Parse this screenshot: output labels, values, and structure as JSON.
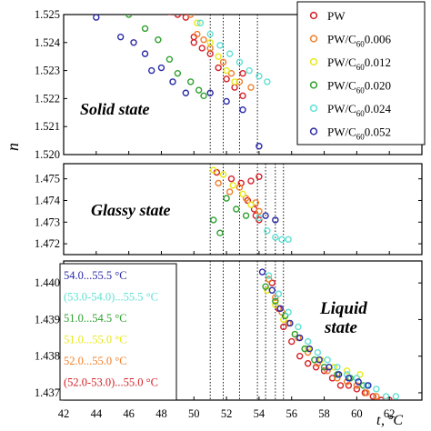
{
  "chart_data": {
    "type": "scatter",
    "x_axis": {
      "label": "t",
      "unit": "°C",
      "range": [
        42,
        64
      ],
      "ticks": [
        "42",
        "44",
        "46",
        "48",
        "50",
        "52",
        "54",
        "56",
        "58",
        "60",
        "62"
      ]
    },
    "y_axis_label": "n",
    "panels": [
      {
        "state": "Solid state",
        "ylim": [
          1.52,
          1.525
        ],
        "ticks": [
          "1.520",
          "1.521",
          "1.522",
          "1.523",
          "1.524",
          "1.525"
        ],
        "dotted_lines": [
          51.0,
          51.8,
          52.8,
          53.9
        ]
      },
      {
        "state": "Glassy state",
        "ylim": [
          1.4715,
          1.4757
        ],
        "ticks": [
          "1.472",
          "1.473",
          "1.474",
          "1.475"
        ],
        "dotted_lines": [
          51.0,
          51.8,
          52.8,
          53.9,
          54.4,
          55.0,
          55.5
        ]
      },
      {
        "state": "Liquid state",
        "state_lines": [
          "Liquid",
          "state"
        ],
        "ylim": [
          1.4368,
          1.4406
        ],
        "ticks": [
          "1.437",
          "1.438",
          "1.439",
          "1.440"
        ],
        "dotted_lines": [
          51.0,
          51.8,
          52.8,
          53.9,
          54.4,
          55.0,
          55.5
        ]
      }
    ],
    "legend": [
      {
        "name": "PW",
        "color": "#d42027"
      },
      {
        "name": "PW/C60 0.006",
        "label_main": "PW/C",
        "label_sub": "60",
        "label_tail": "0.006",
        "color": "#f07f2a"
      },
      {
        "name": "PW/C60 0.012",
        "label_main": "PW/C",
        "label_sub": "60",
        "label_tail": "0.012",
        "color": "#e8e81a"
      },
      {
        "name": "PW/C60 0.020",
        "label_main": "PW/C",
        "label_sub": "60",
        "label_tail": "0.020",
        "color": "#2ea02e"
      },
      {
        "name": "PW/C60 0.024",
        "label_main": "PW/C",
        "label_sub": "60",
        "label_tail": "0.024",
        "color": "#5fe0d4"
      },
      {
        "name": "PW/C60 0.052",
        "label_main": "PW/C",
        "label_sub": "60",
        "label_tail": "0.052",
        "color": "#2a2aa8"
      }
    ],
    "range_labels": [
      {
        "text": "54.0...55.5 °C",
        "color": "#2a2aa8"
      },
      {
        "text": "(53.0-54.0)...55.5 °C",
        "color": "#5fe0d4"
      },
      {
        "text": "51.0...54.5 °C",
        "color": "#2ea02e"
      },
      {
        "text": "51.0...55.0 °C",
        "color": "#e8e81a"
      },
      {
        "text": "52.0...55.0 °C",
        "color": "#f07f2a"
      },
      {
        "text": "(52.0-53.0)...55.0 °C",
        "color": "#d42027"
      }
    ],
    "series": [
      {
        "name": "PW",
        "color": "#d42027",
        "solid": [
          [
            48,
            1.5252
          ],
          [
            48.5,
            1.5251
          ],
          [
            49,
            1.525
          ],
          [
            49.5,
            1.5249
          ],
          [
            50,
            1.5242
          ],
          [
            50,
            1.524
          ],
          [
            50.5,
            1.5238
          ],
          [
            51,
            1.5236
          ],
          [
            51.5,
            1.5231
          ],
          [
            52,
            1.5227
          ],
          [
            52.5,
            1.5224
          ],
          [
            53,
            1.5229
          ],
          [
            53,
            1.5221
          ]
        ],
        "glassy": [
          [
            51.4,
            1.4753
          ],
          [
            52.3,
            1.475
          ],
          [
            52.9,
            1.4748
          ],
          [
            53.5,
            1.4749
          ],
          [
            54,
            1.4751
          ],
          [
            53.3,
            1.474
          ],
          [
            53.7,
            1.4736
          ],
          [
            53.8,
            1.4733
          ],
          [
            54,
            1.4731
          ]
        ],
        "liquid": [
          [
            54.8,
            1.44
          ],
          [
            55.2,
            1.4393
          ],
          [
            55.5,
            1.4388
          ],
          [
            56,
            1.4384
          ],
          [
            56.5,
            1.438
          ],
          [
            57,
            1.4378
          ],
          [
            57.5,
            1.4377
          ],
          [
            58,
            1.4376
          ],
          [
            58.5,
            1.4374
          ],
          [
            59,
            1.4372
          ],
          [
            59.5,
            1.4372
          ],
          [
            60,
            1.4371
          ],
          [
            60.5,
            1.437
          ],
          [
            61,
            1.4369
          ],
          [
            61.5,
            1.4368
          ],
          [
            62,
            1.4368
          ]
        ]
      },
      {
        "name": "PW/C60 0.006",
        "color": "#f07f2a",
        "solid": [
          [
            49.2,
            1.5252
          ],
          [
            49.8,
            1.525
          ],
          [
            50.2,
            1.5243
          ],
          [
            50.6,
            1.5241
          ],
          [
            51,
            1.5238
          ],
          [
            51.8,
            1.5233
          ],
          [
            52.3,
            1.5229
          ],
          [
            52.8,
            1.5226
          ],
          [
            53.5,
            1.5224
          ]
        ],
        "glassy": [
          [
            51.5,
            1.4748
          ],
          [
            52.2,
            1.4744
          ],
          [
            52.8,
            1.4746
          ],
          [
            53.2,
            1.4741
          ],
          [
            53.8,
            1.4739
          ],
          [
            54,
            1.4735
          ]
        ],
        "liquid": [
          [
            54.6,
            1.4401
          ],
          [
            55,
            1.4396
          ],
          [
            55.4,
            1.4392
          ],
          [
            55.8,
            1.4389
          ],
          [
            56.4,
            1.4385
          ],
          [
            57,
            1.4381
          ],
          [
            57.6,
            1.4378
          ],
          [
            58.2,
            1.4376
          ],
          [
            58.8,
            1.4374
          ],
          [
            59.4,
            1.4373
          ],
          [
            60,
            1.4372
          ],
          [
            60.6,
            1.437
          ],
          [
            61.2,
            1.4369
          ]
        ]
      },
      {
        "name": "PW/C60 0.012",
        "color": "#e8e81a",
        "solid": [
          [
            49.5,
            1.5252
          ],
          [
            50.2,
            1.5247
          ],
          [
            51,
            1.524
          ],
          [
            51.5,
            1.5235
          ],
          [
            52,
            1.523
          ],
          [
            52.5,
            1.5226
          ]
        ],
        "glassy": [
          [
            51.2,
            1.4754
          ],
          [
            51.8,
            1.4752
          ],
          [
            52.4,
            1.4747
          ],
          [
            53,
            1.4743
          ],
          [
            53.5,
            1.4738
          ]
        ],
        "liquid": [
          [
            54.5,
            1.4398
          ],
          [
            55,
            1.4394
          ],
          [
            55.5,
            1.439
          ],
          [
            56.2,
            1.4386
          ],
          [
            57,
            1.4382
          ],
          [
            57.8,
            1.4379
          ],
          [
            58.6,
            1.4377
          ],
          [
            59.4,
            1.4376
          ],
          [
            60.2,
            1.4375
          ]
        ]
      },
      {
        "name": "PW/C60 0.020",
        "color": "#2ea02e",
        "solid": [
          [
            45.5,
            1.5252
          ],
          [
            46,
            1.525
          ],
          [
            47,
            1.5245
          ],
          [
            47.8,
            1.5241
          ],
          [
            48.5,
            1.5234
          ],
          [
            49,
            1.5229
          ],
          [
            49.8,
            1.5226
          ],
          [
            50.3,
            1.5223
          ],
          [
            50.6,
            1.5221
          ]
        ],
        "glassy": [
          [
            51.2,
            1.4731
          ],
          [
            51.6,
            1.4725
          ],
          [
            52,
            1.4741
          ],
          [
            52.6,
            1.4736
          ],
          [
            53.2,
            1.4733
          ]
        ],
        "liquid": [
          [
            54.4,
            1.4399
          ],
          [
            55,
            1.4395
          ],
          [
            55.6,
            1.4391
          ],
          [
            56.2,
            1.4386
          ],
          [
            56.8,
            1.4382
          ],
          [
            57.4,
            1.4379
          ],
          [
            58,
            1.4377
          ],
          [
            58.8,
            1.4375
          ],
          [
            59.6,
            1.4374
          ],
          [
            60.4,
            1.4372
          ]
        ]
      },
      {
        "name": "PW/C60 0.024",
        "color": "#5fe0d4",
        "solid": [
          [
            50.4,
            1.5247
          ],
          [
            51,
            1.5243
          ],
          [
            51.6,
            1.5239
          ],
          [
            52.2,
            1.5236
          ],
          [
            52.8,
            1.5233
          ],
          [
            53.4,
            1.523
          ],
          [
            54,
            1.5228
          ],
          [
            54.5,
            1.5226
          ]
        ],
        "glassy": [
          [
            54,
            1.4732
          ],
          [
            54.5,
            1.4726
          ],
          [
            55,
            1.4723
          ],
          [
            55.4,
            1.4722
          ],
          [
            55.8,
            1.4722
          ]
        ],
        "liquid": [
          [
            54.6,
            1.4402
          ],
          [
            55.2,
            1.4397
          ],
          [
            55.8,
            1.4392
          ],
          [
            56.4,
            1.4388
          ],
          [
            57,
            1.4384
          ],
          [
            57.6,
            1.4381
          ],
          [
            58.2,
            1.4379
          ],
          [
            58.8,
            1.4377
          ],
          [
            59.4,
            1.4375
          ],
          [
            60,
            1.4374
          ],
          [
            60.6,
            1.4372
          ],
          [
            61.2,
            1.4371
          ],
          [
            61.8,
            1.4369
          ],
          [
            62.4,
            1.4369
          ]
        ]
      },
      {
        "name": "PW/C60 0.052",
        "color": "#2a2aa8",
        "solid": [
          [
            44,
            1.5249
          ],
          [
            45.5,
            1.5242
          ],
          [
            46.3,
            1.524
          ],
          [
            47,
            1.5236
          ],
          [
            47.4,
            1.523
          ],
          [
            48,
            1.5231
          ],
          [
            48.7,
            1.5226
          ],
          [
            49.5,
            1.5222
          ],
          [
            51,
            1.5222
          ],
          [
            52,
            1.5219
          ],
          [
            53,
            1.5216
          ],
          [
            54,
            1.5203
          ]
        ],
        "glassy": [
          [
            54.4,
            1.4733
          ],
          [
            55,
            1.4731
          ]
        ],
        "liquid": [
          [
            54.2,
            1.4403
          ],
          [
            54.8,
            1.4398
          ],
          [
            55.3,
            1.4393
          ],
          [
            55.9,
            1.4389
          ],
          [
            56.5,
            1.4385
          ],
          [
            57.1,
            1.4382
          ],
          [
            57.7,
            1.4379
          ],
          [
            58.3,
            1.4377
          ],
          [
            58.9,
            1.4375
          ],
          [
            59.5,
            1.4374
          ],
          [
            60.1,
            1.4373
          ],
          [
            60.7,
            1.4372
          ]
        ]
      }
    ]
  }
}
